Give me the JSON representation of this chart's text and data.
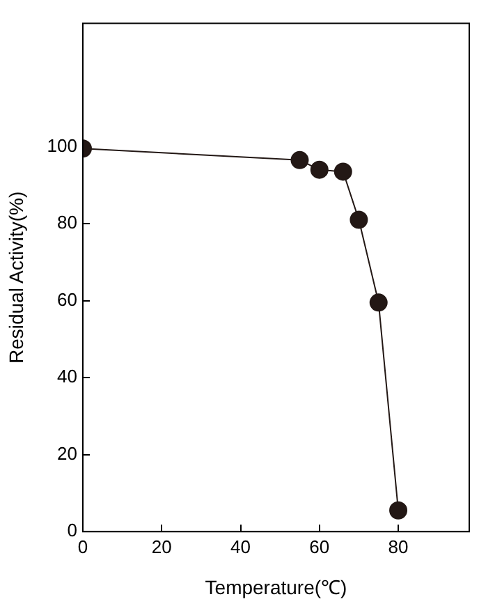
{
  "chart_data": {
    "type": "line",
    "xlabel": "Temperature(℃)",
    "ylabel": "Residual Activity(%)",
    "x": [
      0,
      55,
      60,
      66,
      70,
      75,
      80
    ],
    "series": [
      {
        "color": "#231815",
        "values": [
          99.5,
          96.5,
          94,
          93.5,
          81,
          59.5,
          5.5
        ]
      }
    ],
    "xlim": [
      0,
      98
    ],
    "xticks": [
      0,
      20,
      40,
      60,
      80
    ],
    "ylim": [
      0,
      132
    ],
    "yticks": [
      0,
      20,
      40,
      60,
      80,
      100
    ],
    "grid": false,
    "legend": false,
    "marker": "circle",
    "line_style": "solid"
  }
}
